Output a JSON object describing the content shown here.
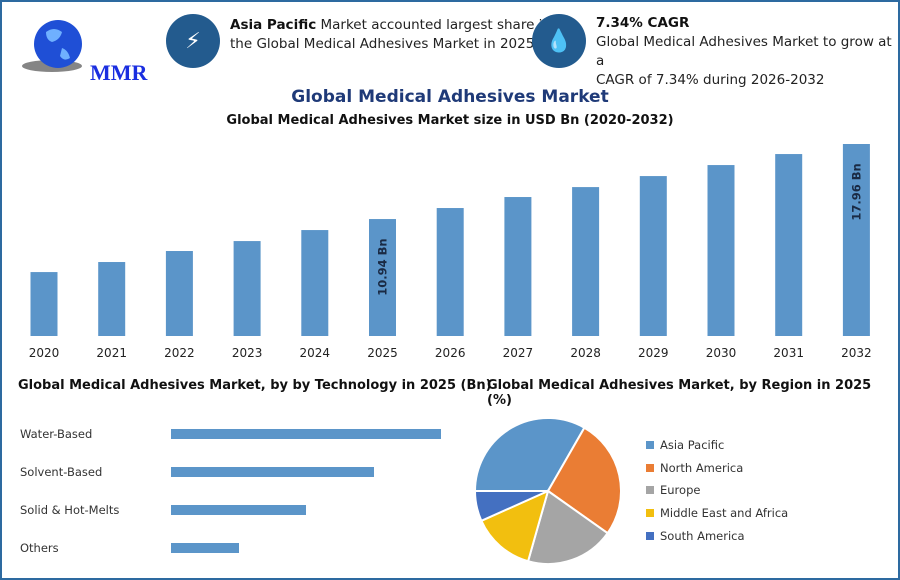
{
  "logo": {
    "text": "MMR"
  },
  "highlights": [
    {
      "icon": "lightning-icon",
      "bold": "Asia Pacific",
      "text_line1": " Market accounted largest share in",
      "text_line2": "the Global Medical Adhesives Market in 2025."
    },
    {
      "icon": "drop-icon",
      "bold": "7.34% CAGR",
      "text_line1": "Global Medical Adhesives Market to grow at a",
      "text_line2": "CAGR of 7.34% during 2026-2032"
    }
  ],
  "colors": {
    "bar": "#5b95c9",
    "badge": "#235b8e",
    "title": "#1f3a78",
    "border": "#2d6aa0"
  },
  "chart_data": [
    {
      "type": "bar",
      "title": "Global Medical Adhesives Market",
      "subtitle": "Global Medical Adhesives Market size in USD Bn (2020-2032)",
      "categories": [
        "2020",
        "2021",
        "2022",
        "2023",
        "2024",
        "2025",
        "2026",
        "2027",
        "2028",
        "2029",
        "2030",
        "2031",
        "2032"
      ],
      "values": [
        5.98,
        6.92,
        7.95,
        8.88,
        9.91,
        10.94,
        11.97,
        13.0,
        13.93,
        14.96,
        15.99,
        17.02,
        17.96
      ],
      "data_labels": {
        "2025": "10.94 Bn",
        "2032": "17.96 Bn"
      },
      "ylim": [
        0,
        18
      ],
      "grid": false
    },
    {
      "type": "bar",
      "orientation": "horizontal",
      "title": "Global Medical Adhesives Market, by by Technology in 2025 (Bn)",
      "categories": [
        "Water-Based",
        "Solvent-Based",
        "Solid & Hot-Melts",
        "Others"
      ],
      "values_relative": [
        1.0,
        0.75,
        0.5,
        0.25
      ]
    },
    {
      "type": "pie",
      "title": "Global Medical Adhesives Market, by Region in 2025 (%)",
      "legend": "right",
      "categories": [
        "Asia Pacific",
        "North America",
        "Europe",
        "Middle East and Africa",
        "South America"
      ],
      "values": [
        33.3,
        26.5,
        19.6,
        13.9,
        6.7
      ],
      "colors": [
        "#5b95c9",
        "#ea7d34",
        "#a5a5a5",
        "#f2bf0f",
        "#4470c1"
      ]
    }
  ]
}
